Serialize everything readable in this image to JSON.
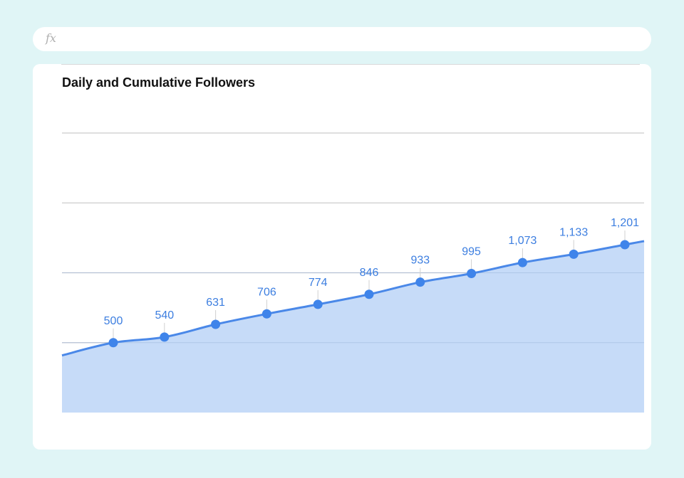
{
  "formula_bar": {
    "icon": "fx-icon",
    "label": "fx"
  },
  "colors": {
    "background": "#e0f5f6",
    "card": "#ffffff",
    "line": "#4a88e8",
    "area": "#c6dbf8",
    "point": "#3f84ea",
    "label": "#3c7ee0",
    "grid": "#cccccc"
  },
  "chart_data": {
    "type": "area",
    "title": "Daily and Cumulative Followers",
    "xlabel": "",
    "ylabel": "",
    "ylim": [
      0,
      2000
    ],
    "grid": true,
    "series": [
      {
        "values": [
          500,
          540,
          631,
          706,
          774,
          846,
          933,
          995,
          1073,
          1133,
          1201
        ],
        "labels": [
          "500",
          "540",
          "631",
          "706",
          "774",
          "846",
          "933",
          "995",
          "1,073",
          "1,133",
          "1,201"
        ]
      }
    ]
  }
}
